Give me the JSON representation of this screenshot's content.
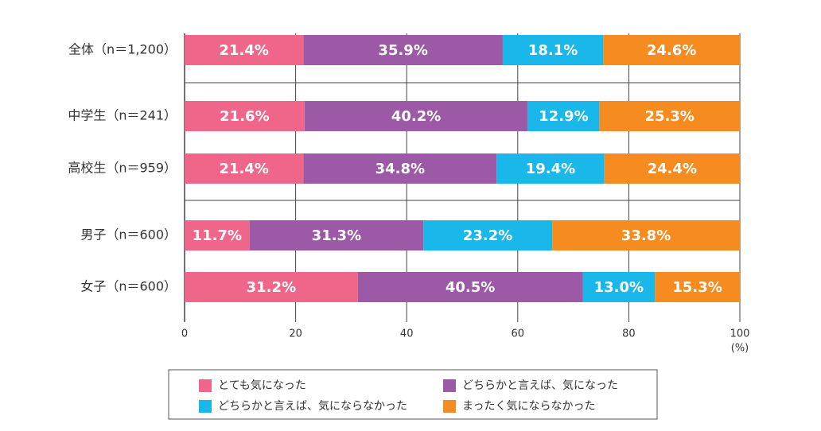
{
  "chart_data": {
    "type": "stacked-bar-horizontal",
    "categories": [
      "全体（n＝1,200）",
      "中学生（n＝241）",
      "高校生（n＝959）",
      "男子（n＝600）",
      "女子（n＝600）"
    ],
    "series": [
      {
        "name": "とても気になった",
        "color": "#f0668a",
        "values": [
          21.4,
          21.6,
          21.4,
          11.7,
          31.2
        ],
        "value_labels": [
          "21.4%",
          "21.6%",
          "21.4%",
          "11.7%",
          "31.2%"
        ]
      },
      {
        "name": "どちらかと言えば、気になった",
        "color": "#9b59a6",
        "values": [
          35.9,
          40.2,
          34.8,
          31.3,
          40.5
        ],
        "value_labels": [
          "35.9%",
          "40.2%",
          "34.8%",
          "31.3%",
          "40.5%"
        ]
      },
      {
        "name": "どちらかと言えば、気にならなかった",
        "color": "#1ab7ea",
        "values": [
          18.1,
          12.9,
          19.4,
          23.2,
          13.0
        ],
        "value_labels": [
          "18.1%",
          "12.9%",
          "19.4%",
          "23.2%",
          "13.0%"
        ]
      },
      {
        "name": "まったく気にならなかった",
        "color": "#f68b1f",
        "values": [
          24.6,
          25.3,
          24.4,
          33.8,
          15.3
        ],
        "value_labels": [
          "24.6%",
          "25.3%",
          "24.4%",
          "33.8%",
          "15.3%"
        ]
      }
    ],
    "xlim": [
      0,
      100
    ],
    "xticks": [
      0,
      20,
      40,
      60,
      80,
      100
    ],
    "x_unit": "(%)",
    "grid": true
  }
}
